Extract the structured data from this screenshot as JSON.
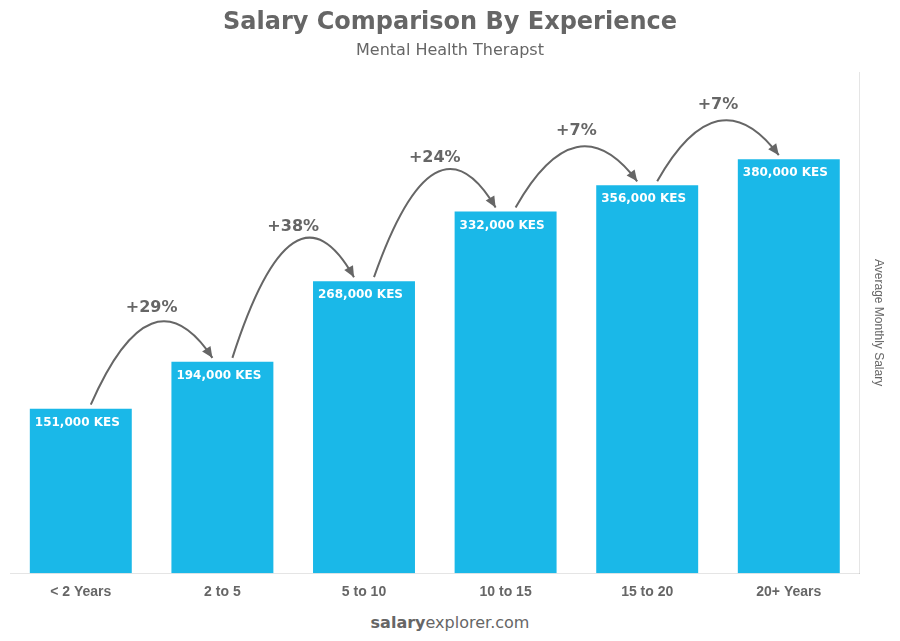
{
  "chart_data": {
    "type": "bar",
    "title": "Salary Comparison By Experience",
    "subtitle": "Mental Health Therapst",
    "categories": [
      "< 2 Years",
      "2 to 5",
      "5 to 10",
      "10 to 15",
      "15 to 20",
      "20+ Years"
    ],
    "values": [
      151000,
      194000,
      268000,
      332000,
      356000,
      380000
    ],
    "value_labels": [
      "151,000 KES",
      "194,000 KES",
      "268,000 KES",
      "332,000 KES",
      "356,000 KES",
      "380,000 KES"
    ],
    "data_labels": true,
    "annotations": [
      "+29%",
      "+38%",
      "+24%",
      "+7%",
      "+7%"
    ],
    "ylabel": "Average Monthly Salary",
    "footer": [
      "salary",
      "explorer",
      ".com"
    ],
    "color": "#1ab8e8",
    "ylim": [
      0,
      460000
    ],
    "grid": false,
    "tick_labels": "x"
  }
}
